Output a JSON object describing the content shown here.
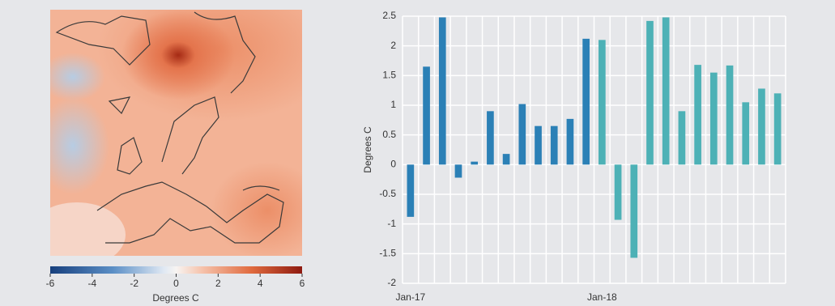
{
  "chart_data": [
    {
      "type": "map",
      "colorbar": {
        "label": "Degrees C",
        "lim": [
          -6,
          6
        ],
        "ticks": [
          -6,
          -4,
          -2,
          0,
          2,
          4,
          6
        ]
      }
    },
    {
      "type": "bar",
      "y_label": "Degrees C",
      "categories": [
        "Jan-17",
        null,
        null,
        null,
        null,
        null,
        null,
        null,
        null,
        null,
        null,
        null,
        "Jan-18",
        null,
        null,
        null,
        null,
        null,
        null,
        null,
        null,
        null,
        null,
        null
      ],
      "series": [
        {
          "color": "#2b80b6",
          "values": [
            -0.88,
            1.65,
            2.48,
            -0.22,
            0.05,
            0.9,
            0.18,
            1.02,
            0.65,
            0.65,
            0.77,
            2.12,
            null,
            null,
            null,
            null,
            null,
            null,
            null,
            null,
            null,
            null,
            null,
            null
          ]
        },
        {
          "color": "#4db1b6",
          "values": [
            null,
            null,
            null,
            null,
            null,
            null,
            null,
            null,
            null,
            null,
            null,
            null,
            2.1,
            -0.93,
            -1.57,
            2.42,
            2.48,
            0.9,
            1.68,
            1.55,
            1.67,
            1.05,
            1.28,
            1.2
          ]
        }
      ],
      "ylim": [
        -2,
        2.5
      ],
      "yticks": [
        -2,
        -1.5,
        -1,
        -0.5,
        0,
        0.5,
        1,
        1.5,
        2,
        2.5
      ],
      "grid": true
    }
  ]
}
